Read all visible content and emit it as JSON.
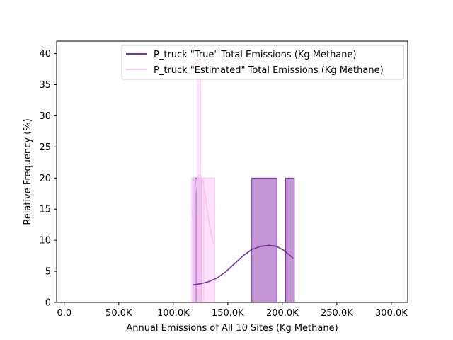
{
  "chart_data": {
    "type": "histogram",
    "xlabel": "Annual Emissions of All 10 Sites (Kg Methane)",
    "ylabel": "Relative Frequency (%)",
    "xlim": [
      -7000,
      315000
    ],
    "ylim": [
      0,
      42
    ],
    "x_ticks": [
      {
        "value": 0,
        "label": "0.0"
      },
      {
        "value": 50000,
        "label": "50.0K"
      },
      {
        "value": 100000,
        "label": "100.0K"
      },
      {
        "value": 150000,
        "label": "150.0K"
      },
      {
        "value": 200000,
        "label": "200.0K"
      },
      {
        "value": 250000,
        "label": "250.0K"
      },
      {
        "value": 300000,
        "label": "300.0K"
      }
    ],
    "y_ticks": [
      0,
      5,
      10,
      15,
      20,
      25,
      30,
      35,
      40
    ],
    "grid": false,
    "legend_position": "top-right",
    "series": [
      {
        "name": "P_truck \"True\" Total Emissions (Kg Methane)",
        "color": "#7b2fa6",
        "fill": "#b983cc",
        "bins": [
          {
            "x0": 118000,
            "x1": 126000,
            "y": 20
          },
          {
            "x0": 172000,
            "x1": 195000,
            "y": 20
          },
          {
            "x0": 203000,
            "x1": 211000,
            "y": 20
          }
        ],
        "kde": [
          [
            118000,
            2.8
          ],
          [
            125000,
            3.0
          ],
          [
            132000,
            3.3
          ],
          [
            140000,
            3.9
          ],
          [
            148000,
            4.9
          ],
          [
            156000,
            6.2
          ],
          [
            164000,
            7.5
          ],
          [
            172000,
            8.5
          ],
          [
            180000,
            9.0
          ],
          [
            188000,
            9.2
          ],
          [
            195000,
            9.0
          ],
          [
            201000,
            8.4
          ],
          [
            206000,
            7.7
          ],
          [
            210000,
            7.1
          ]
        ]
      },
      {
        "name": "P_truck \"Estimated\" Total Emissions (Kg Methane)",
        "color": "#f7c4f2",
        "fill": "#fdd6f9",
        "bins": [
          {
            "x0": 117000,
            "x1": 120000,
            "y": 20
          },
          {
            "x0": 120000,
            "x1": 122000,
            "y": 0
          },
          {
            "x0": 122000,
            "x1": 125000,
            "y": 40
          },
          {
            "x0": 125000,
            "x1": 128000,
            "y": 20
          },
          {
            "x0": 128000,
            "x1": 138000,
            "y": 20
          }
        ],
        "kde": [
          [
            117000,
            13.5
          ],
          [
            119000,
            16.5
          ],
          [
            121000,
            18.9
          ],
          [
            123000,
            20.3
          ],
          [
            125000,
            20.5
          ],
          [
            127000,
            19.5
          ],
          [
            129000,
            17.5
          ],
          [
            131000,
            15.0
          ],
          [
            133000,
            12.6
          ],
          [
            135000,
            10.8
          ],
          [
            137000,
            9.5
          ]
        ]
      }
    ]
  }
}
